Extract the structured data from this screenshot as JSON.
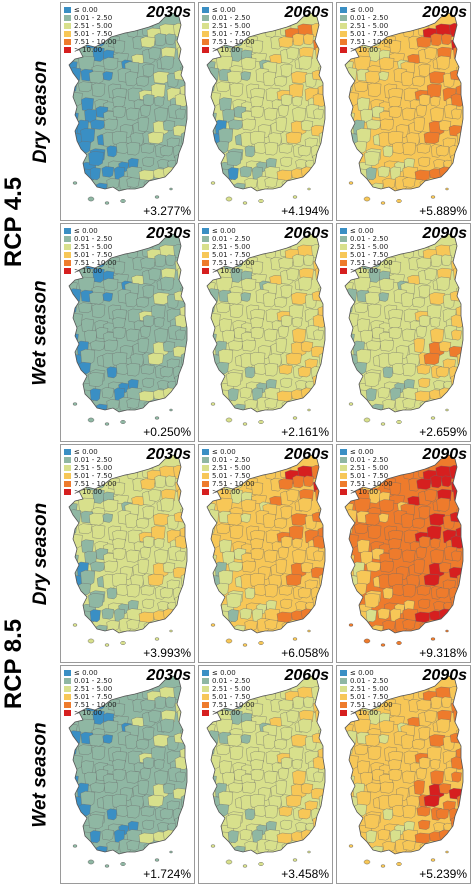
{
  "legend": {
    "classes": [
      {
        "label": "≤ 0.00",
        "color": "#3a8fc4"
      },
      {
        "label": "0.01 - 2.50",
        "color": "#8fb7a3"
      },
      {
        "label": "2.51 - 5.00",
        "color": "#d8e08c"
      },
      {
        "label": "5.01 - 7.50",
        "color": "#f7c757"
      },
      {
        "label": "7.51 - 10.00",
        "color": "#ee7b2c"
      },
      {
        "label": "> 10.00",
        "color": "#d61f1f"
      }
    ]
  },
  "scenarios": [
    {
      "label": "RCP 4.5",
      "seasons": [
        {
          "label": "Dry season",
          "panels": [
            {
              "decade": "2030s",
              "change": "+3.277%",
              "dominant_class": 1
            },
            {
              "decade": "2060s",
              "change": "+4.194%",
              "dominant_class": 2
            },
            {
              "decade": "2090s",
              "change": "+5.889%",
              "dominant_class": 3
            }
          ]
        },
        {
          "label": "Wet season",
          "panels": [
            {
              "decade": "2030s",
              "change": "+0.250%",
              "dominant_class": 1
            },
            {
              "decade": "2060s",
              "change": "+2.161%",
              "dominant_class": 2
            },
            {
              "decade": "2090s",
              "change": "+2.659%",
              "dominant_class": 2
            }
          ]
        }
      ]
    },
    {
      "label": "RCP 8.5",
      "seasons": [
        {
          "label": "Dry season",
          "panels": [
            {
              "decade": "2030s",
              "change": "+3.993%",
              "dominant_class": 2
            },
            {
              "decade": "2060s",
              "change": "+6.058%",
              "dominant_class": 3
            },
            {
              "decade": "2090s",
              "change": "+9.318%",
              "dominant_class": 4
            }
          ]
        },
        {
          "label": "Wet season",
          "panels": [
            {
              "decade": "2030s",
              "change": "+1.724%",
              "dominant_class": 1
            },
            {
              "decade": "2060s",
              "change": "+3.458%",
              "dominant_class": 2
            },
            {
              "decade": "2090s",
              "change": "+5.239%",
              "dominant_class": 3
            }
          ]
        }
      ]
    }
  ]
}
